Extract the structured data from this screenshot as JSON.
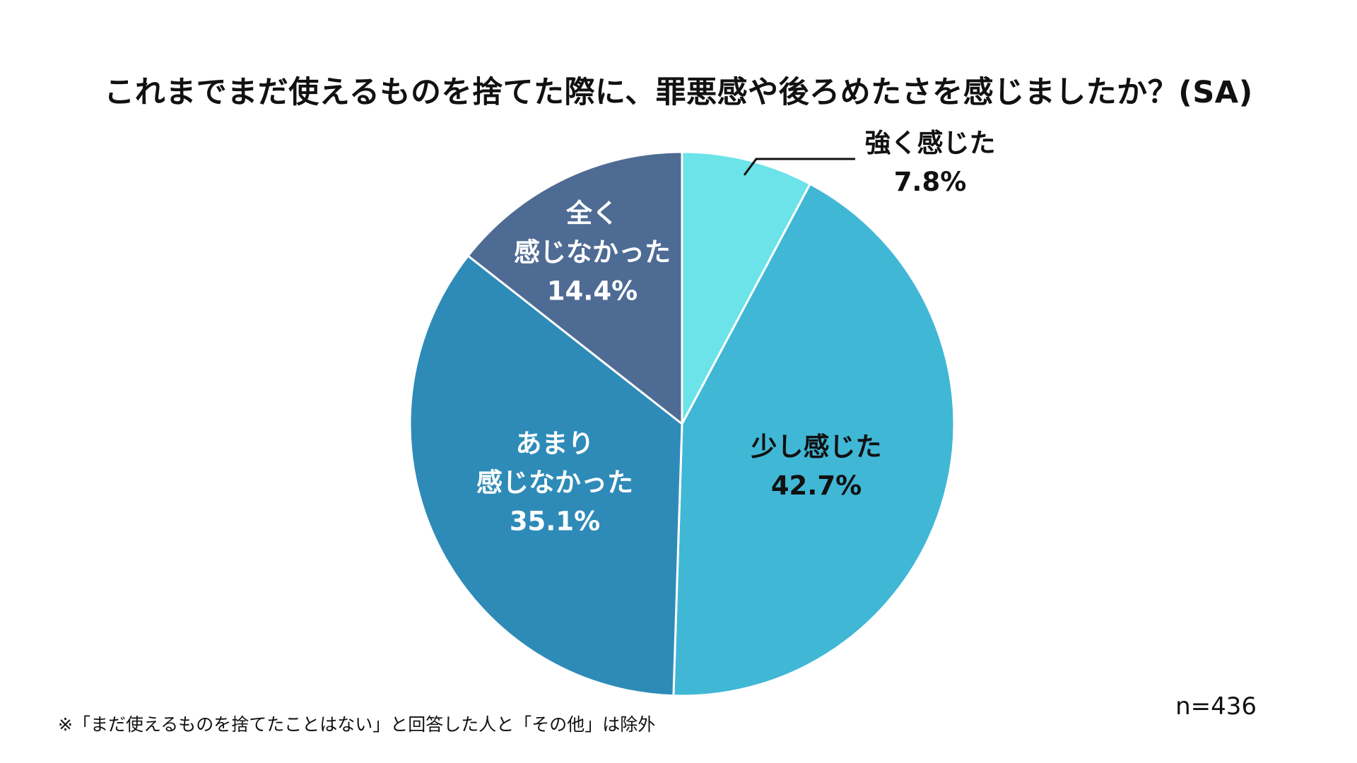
{
  "chart_data": {
    "type": "pie",
    "title": "これまでまだ使えるものを捨てた際に、罪悪感や後ろめたさを感じましたか？(SA)",
    "slices": [
      {
        "label": [
          "強く感じた"
        ],
        "value": 7.8,
        "value_label": "7.8%",
        "color": "#6BE3E8",
        "text_color": "#111111"
      },
      {
        "label": [
          "少し感じた"
        ],
        "value": 42.7,
        "value_label": "42.7%",
        "color": "#41B7D6",
        "text_color": "#111111"
      },
      {
        "label": [
          "あまり",
          "感じなかった"
        ],
        "value": 35.1,
        "value_label": "35.1%",
        "color": "#2E8BB8",
        "text_color": "#ffffff"
      },
      {
        "label": [
          "全く",
          "感じなかった"
        ],
        "value": 14.4,
        "value_label": "14.4%",
        "color": "#4E6B94",
        "text_color": "#ffffff"
      }
    ],
    "start_angle": "12 o'clock",
    "direction": "clockwise",
    "legend": "none",
    "sample_size": "n=436",
    "footnote": "※「まだ使えるものを捨てたことはない」と回答した人と「その他」は除外"
  }
}
